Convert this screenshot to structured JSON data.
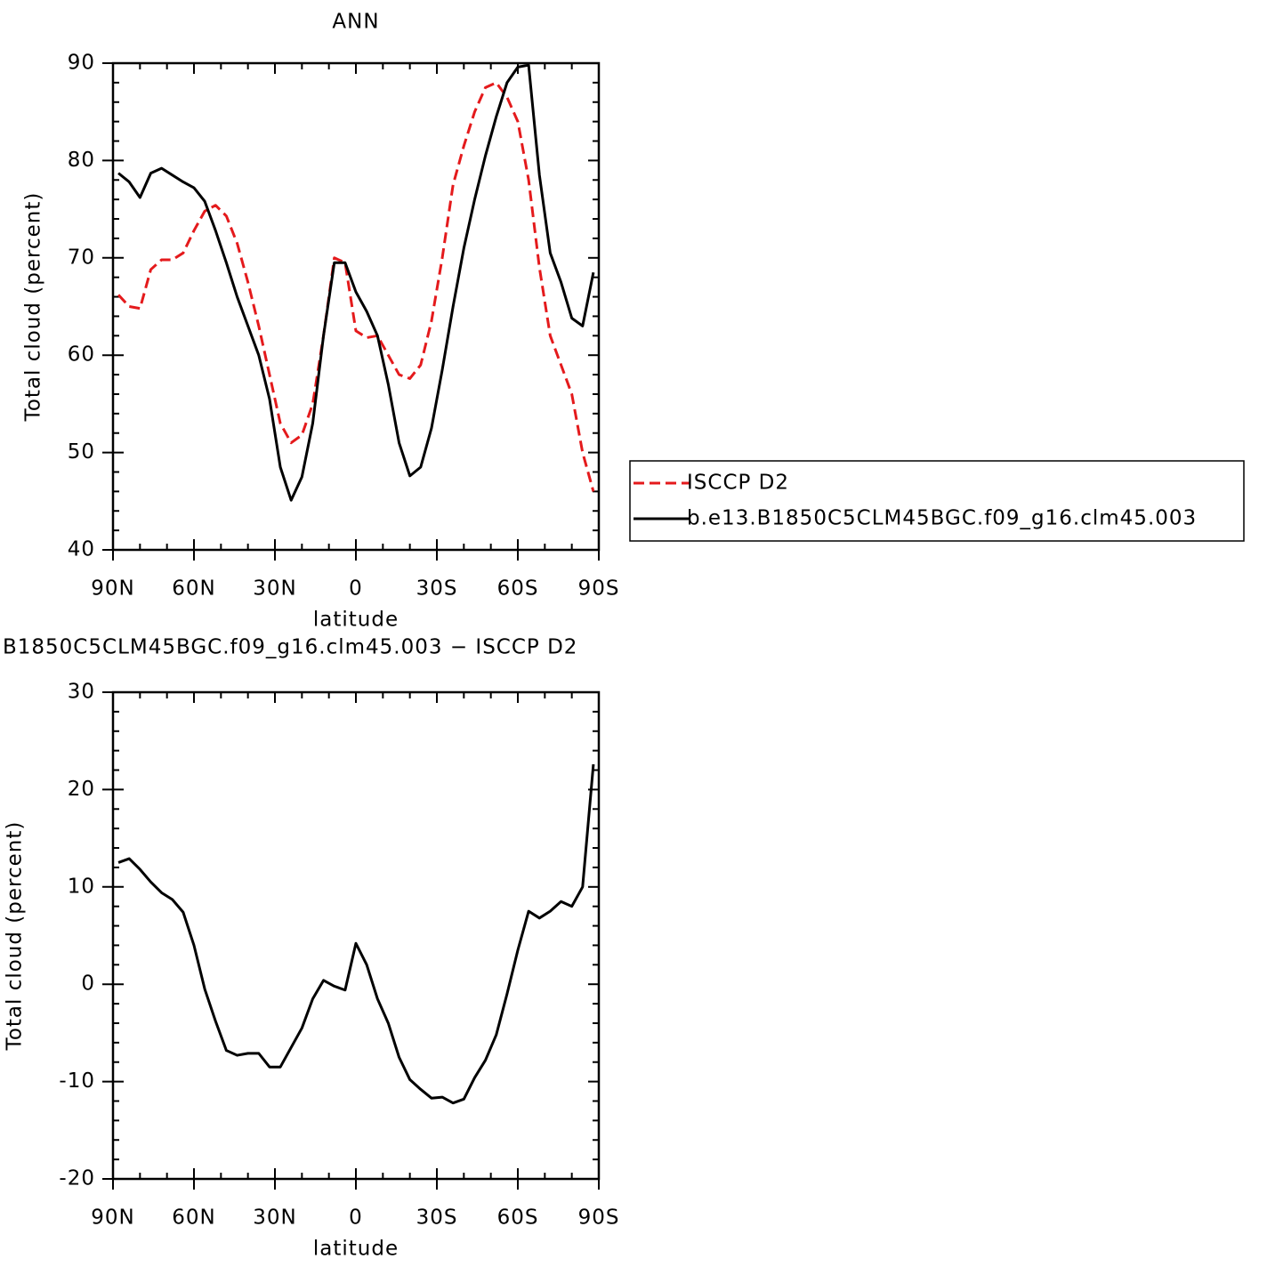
{
  "chart_data": [
    {
      "type": "line",
      "title": "ANN",
      "xlabel": "latitude",
      "ylabel": "Total cloud (percent)",
      "x": [
        88,
        84,
        80,
        76,
        72,
        68,
        64,
        60,
        56,
        52,
        48,
        44,
        40,
        36,
        32,
        28,
        24,
        20,
        16,
        12,
        8,
        4,
        0,
        -4,
        -8,
        -12,
        -16,
        -20,
        -24,
        -28,
        -32,
        -36,
        -40,
        -44,
        -48,
        -52,
        -56,
        -60,
        -64,
        -68,
        -72,
        -76,
        -80,
        -84,
        -88
      ],
      "series": [
        {
          "name": "ISCCP D2",
          "color": "#e41a1c",
          "dashed": true,
          "values": [
            66.2,
            65,
            64.8,
            68.8,
            69.8,
            69.8,
            70.5,
            72.8,
            74.8,
            75.4,
            74.3,
            71.5,
            67.5,
            63,
            58,
            53,
            51,
            51.8,
            55,
            62,
            70,
            69.5,
            62.5,
            61.8,
            62,
            60,
            58,
            57.6,
            59,
            63.5,
            70,
            77.5,
            81.5,
            85,
            87.5,
            88,
            86.5,
            84,
            78,
            69,
            62,
            59,
            56,
            50,
            46
          ]
        },
        {
          "name": "b.e13.B1850C5CLM45BGC.f09_g16.clm45.003",
          "color": "#000000",
          "dashed": false,
          "values": [
            78.7,
            77.8,
            76.2,
            78.7,
            79.2,
            78.5,
            77.8,
            77.2,
            75.8,
            72.8,
            69.5,
            66,
            63,
            60,
            55.5,
            48.5,
            45.1,
            47.5,
            53,
            62,
            69.5,
            69.5,
            66.5,
            64.5,
            62,
            57,
            51,
            47.6,
            48.5,
            52.5,
            58.5,
            65,
            71,
            76,
            80.5,
            84.5,
            88,
            89.6,
            89.8,
            78.5,
            70.5,
            67.5,
            63.8,
            63,
            68.5
          ]
        }
      ],
      "xlim": [
        90,
        -90
      ],
      "xticks": [
        {
          "value": 90,
          "label": "90N"
        },
        {
          "value": 60,
          "label": "60N"
        },
        {
          "value": 30,
          "label": "30N"
        },
        0,
        {
          "value": -30,
          "label": "30S"
        },
        {
          "value": -60,
          "label": "60S"
        },
        {
          "value": -90,
          "label": "90S"
        }
      ],
      "ylim": [
        40,
        90
      ],
      "yticks": [
        40,
        50,
        60,
        70,
        80,
        90
      ],
      "legend": "outside-right"
    },
    {
      "type": "line",
      "title": "B1850C5CLM45BGC.f09_g16.clm45.003 − ISCCP D2",
      "xlabel": "latitude",
      "ylabel": "Total cloud (percent)",
      "x": [
        88,
        84,
        80,
        76,
        72,
        68,
        64,
        60,
        56,
        52,
        48,
        44,
        40,
        36,
        32,
        28,
        24,
        20,
        16,
        12,
        8,
        4,
        0,
        -4,
        -8,
        -12,
        -16,
        -20,
        -24,
        -28,
        -32,
        -36,
        -40,
        -44,
        -48,
        -52,
        -56,
        -60,
        -64,
        -68,
        -72,
        -76,
        -80,
        -84,
        -88
      ],
      "series": [
        {
          "color": "#000000",
          "dashed": false,
          "values": [
            12.5,
            12.9,
            11.8,
            10.5,
            9.4,
            8.7,
            7.4,
            4,
            -0.5,
            -3.8,
            -6.8,
            -7.3,
            -7.1,
            -7.1,
            -8.5,
            -8.5,
            -6.5,
            -4.5,
            -1.5,
            0.4,
            -0.2,
            -0.6,
            4.2,
            2,
            -1.5,
            -4,
            -7.5,
            -9.8,
            -10.8,
            -11.7,
            -11.6,
            -12.2,
            -11.8,
            -9.6,
            -7.8,
            -5.2,
            -1,
            3.5,
            7.5,
            6.8,
            7.5,
            8.5,
            8,
            10,
            22.6
          ]
        }
      ],
      "xlim": [
        90,
        -90
      ],
      "xticks": [
        {
          "value": 90,
          "label": "90N"
        },
        {
          "value": 60,
          "label": "60N"
        },
        {
          "value": 30,
          "label": "30N"
        },
        0,
        {
          "value": -30,
          "label": "30S"
        },
        {
          "value": -60,
          "label": "60S"
        },
        {
          "value": -90,
          "label": "90S"
        }
      ],
      "ylim": [
        -20,
        30
      ],
      "yticks": [
        -20,
        -10,
        0,
        10,
        20,
        30
      ]
    }
  ]
}
